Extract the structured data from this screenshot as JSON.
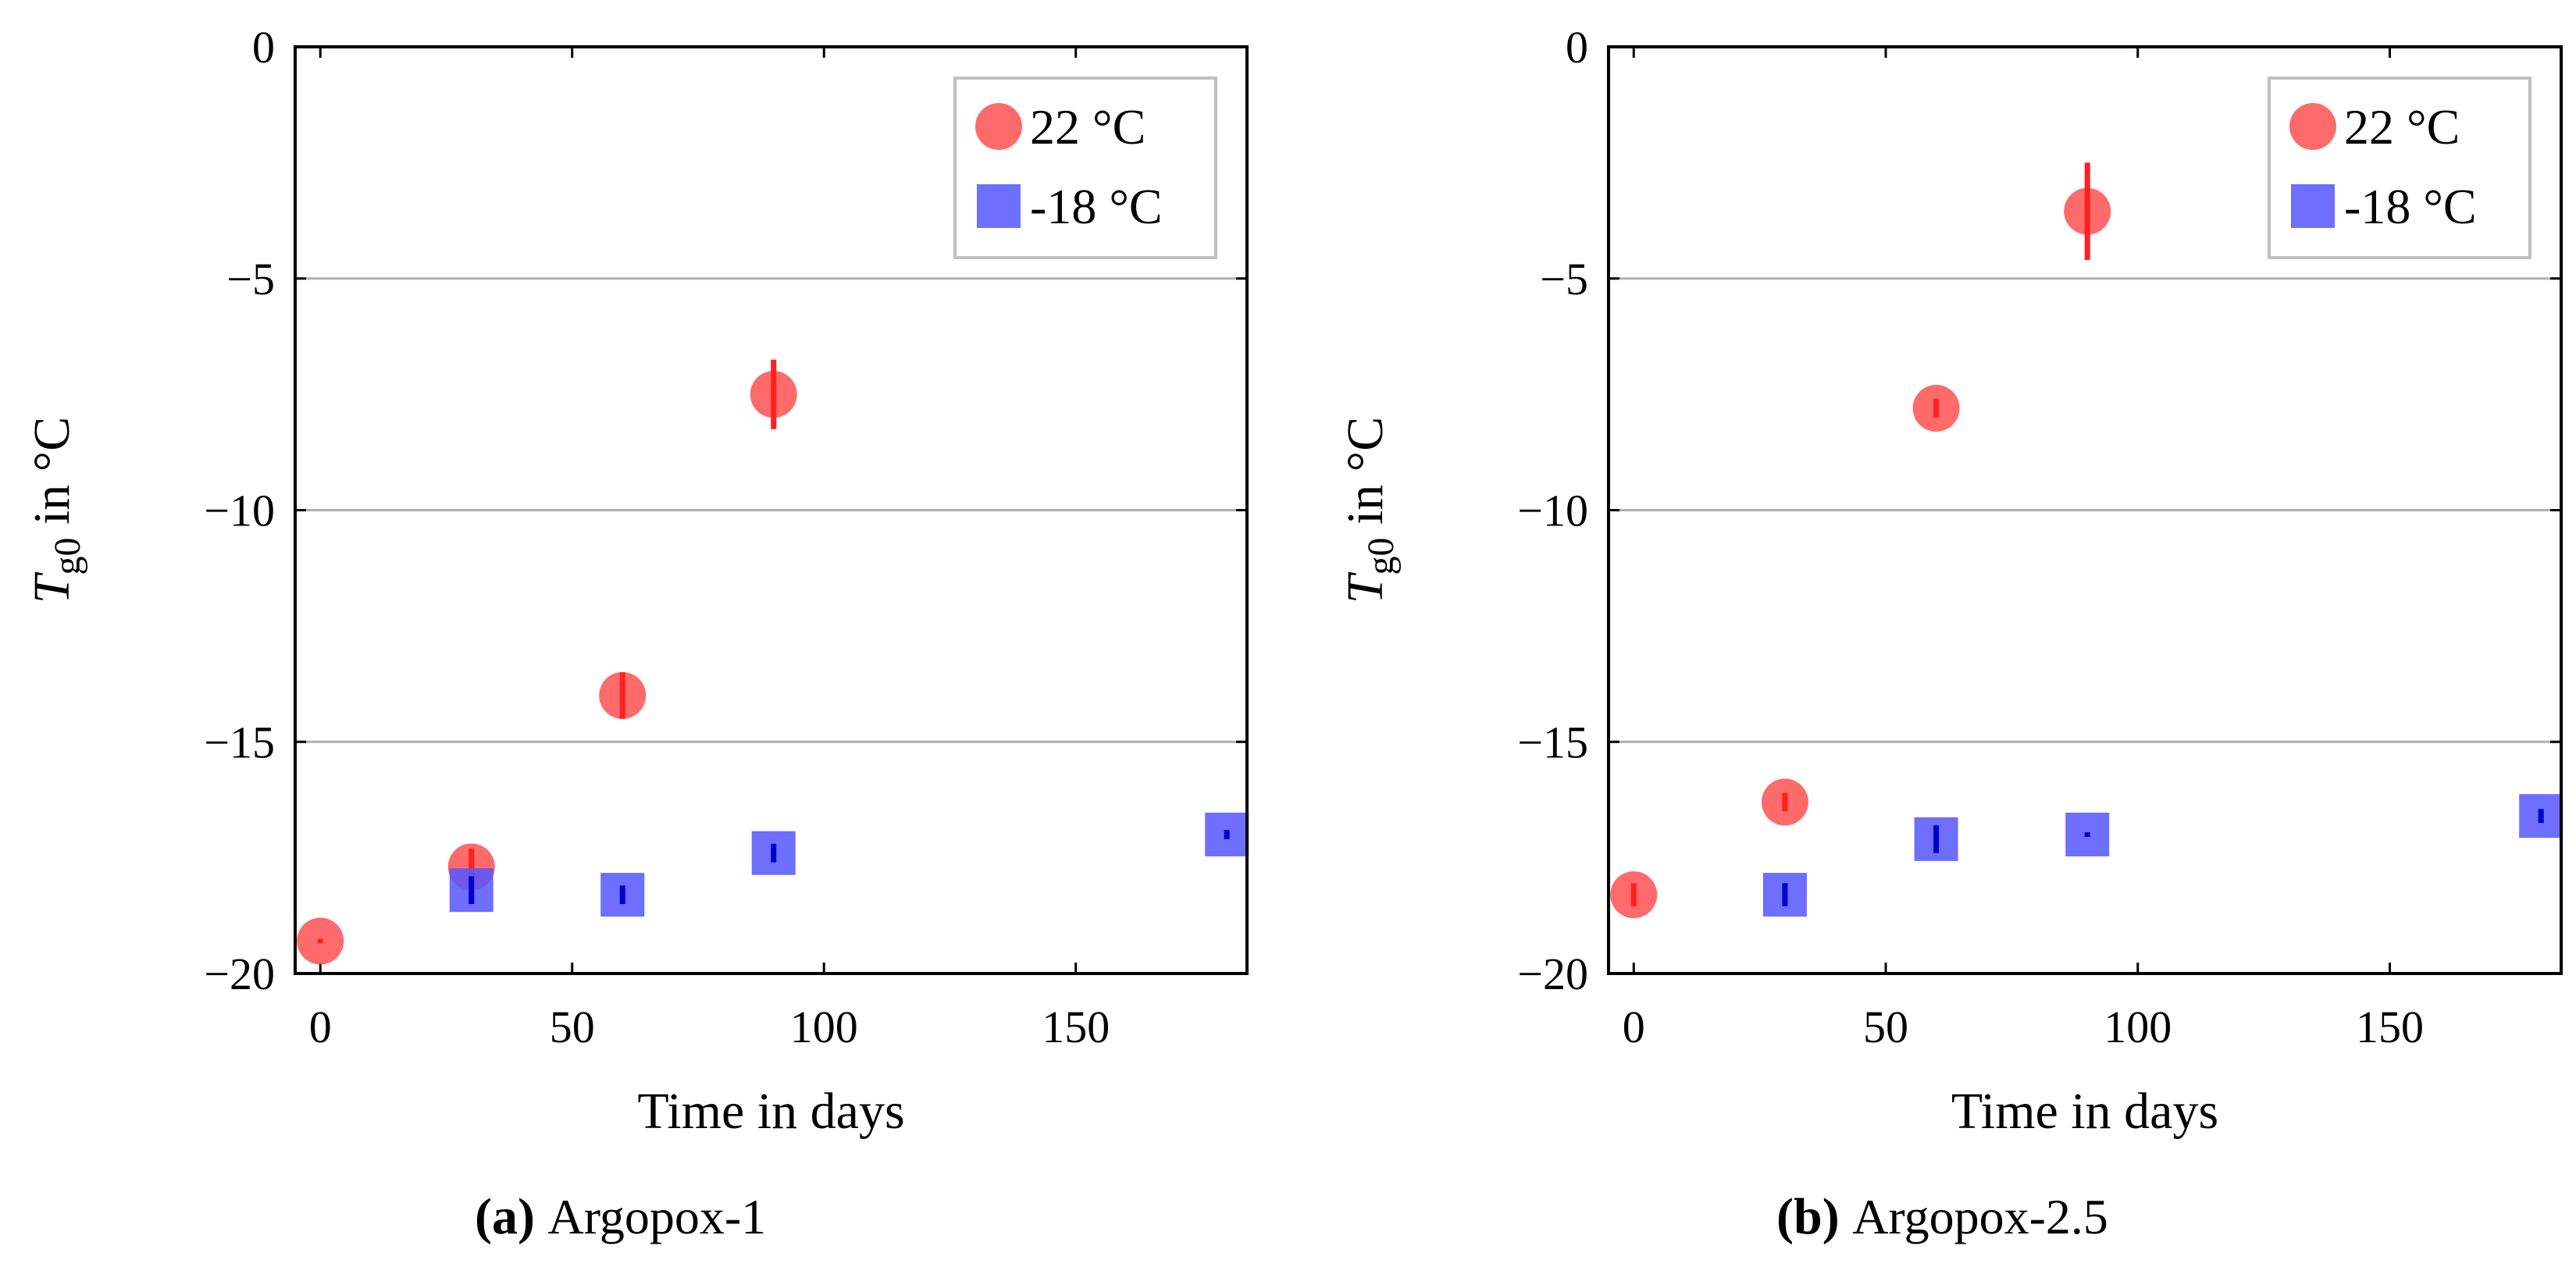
{
  "chart_data": [
    {
      "type": "scatter",
      "panel_letter": "a",
      "caption": "Argopox-1",
      "xlabel": "Time in days",
      "ylabel": "T",
      "ylabel_sub": "g0",
      "ylabel_suffix": " in °C",
      "xlim": [
        -5,
        184
      ],
      "ylim": [
        -20,
        0
      ],
      "xticks": [
        0,
        50,
        100,
        150
      ],
      "yticks": [
        0,
        -5,
        -10,
        -15,
        -20
      ],
      "ytick_labels": [
        "0",
        "−5",
        "−10",
        "−15",
        "−20"
      ],
      "grid": "horizontal",
      "legend_position": "top-right",
      "series": [
        {
          "name": "22 °C",
          "marker": "circle",
          "color": "#ff5050",
          "error_color": "#ff2020",
          "points": [
            {
              "x": 0,
              "y": -19.3,
              "err": 0.05
            },
            {
              "x": 30,
              "y": -17.7,
              "err": 0.4
            },
            {
              "x": 60,
              "y": -14.0,
              "err": 0.5
            },
            {
              "x": 90,
              "y": -7.5,
              "err": 0.75
            }
          ]
        },
        {
          "name": "-18 °C",
          "marker": "square",
          "color": "#5555ff",
          "error_color": "#0000cc",
          "points": [
            {
              "x": 30,
              "y": -18.2,
              "err": 0.3
            },
            {
              "x": 60,
              "y": -18.3,
              "err": 0.2
            },
            {
              "x": 90,
              "y": -17.4,
              "err": 0.2
            },
            {
              "x": 180,
              "y": -17.0,
              "err": 0.1
            }
          ]
        }
      ]
    },
    {
      "type": "scatter",
      "panel_letter": "b",
      "caption": "Argopox-2.5",
      "xlabel": "Time in days",
      "ylabel": "T",
      "ylabel_sub": "g0",
      "ylabel_suffix": " in °C",
      "xlim": [
        -5,
        184
      ],
      "ylim": [
        -20,
        0
      ],
      "xticks": [
        0,
        50,
        100,
        150
      ],
      "yticks": [
        0,
        -5,
        -10,
        -15,
        -20
      ],
      "ytick_labels": [
        "0",
        "−5",
        "−10",
        "−15",
        "−20"
      ],
      "grid": "horizontal",
      "legend_position": "top-right",
      "series": [
        {
          "name": "22 °C",
          "marker": "circle",
          "color": "#ff5050",
          "error_color": "#ff2020",
          "points": [
            {
              "x": 0,
              "y": -18.3,
              "err": 0.25
            },
            {
              "x": 30,
              "y": -16.3,
              "err": 0.2
            },
            {
              "x": 60,
              "y": -7.8,
              "err": 0.2
            },
            {
              "x": 90,
              "y": -3.55,
              "err": 1.05
            }
          ]
        },
        {
          "name": "-18 °C",
          "marker": "square",
          "color": "#5555ff",
          "error_color": "#0000cc",
          "points": [
            {
              "x": 30,
              "y": -18.3,
              "err": 0.25
            },
            {
              "x": 60,
              "y": -17.1,
              "err": 0.3
            },
            {
              "x": 90,
              "y": -17.0,
              "err": 0.05
            },
            {
              "x": 180,
              "y": -16.6,
              "err": 0.15
            }
          ]
        }
      ]
    }
  ]
}
